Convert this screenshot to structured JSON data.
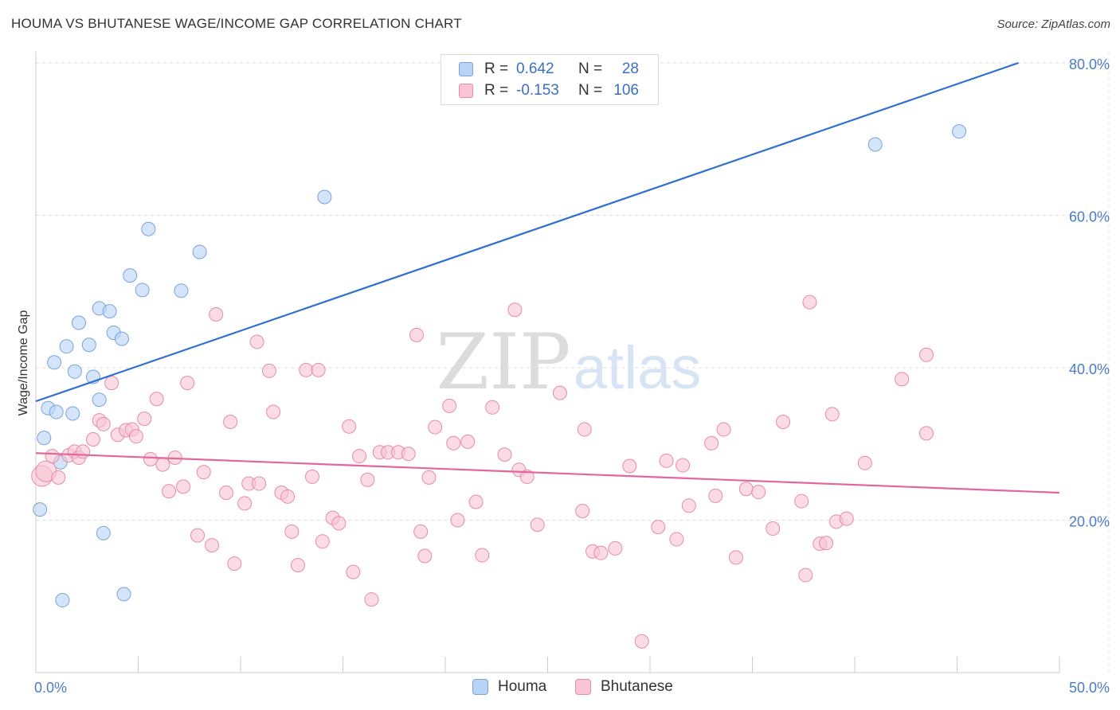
{
  "title": "HOUMA VS BHUTANESE WAGE/INCOME GAP CORRELATION CHART",
  "source": "Source: ZipAtlas.com",
  "watermark": {
    "zip": "ZIP",
    "atlas": "atlas"
  },
  "legend": [
    {
      "name": "Houma",
      "r_label": "R =",
      "r_value": "0.642",
      "n_label": "N =",
      "n_value": "28",
      "fill": "#b8d3f5",
      "stroke": "#7aa3dc"
    },
    {
      "name": "Bhutanese",
      "r_label": "R =",
      "r_value": "-0.153",
      "n_label": "N =",
      "n_value": "106",
      "fill": "#f9c4d3",
      "stroke": "#e78ba6"
    }
  ],
  "colors": {
    "houma_line": "#2f6fce",
    "bhutanese_line": "#e2679a",
    "tick_text": "#4a7cc9",
    "grid": "#dddddd"
  },
  "chart_data": {
    "type": "scatter",
    "ylabel": "Wage/Income Gap",
    "xlabel": "",
    "xlim": [
      0,
      50
    ],
    "ylim": [
      0,
      80
    ],
    "x_tick_labels": [
      {
        "value": 0,
        "label": "0.0%"
      },
      {
        "value": 50,
        "label": "50.0%"
      }
    ],
    "y_tick_labels": [
      {
        "value": 20,
        "label": "20.0%"
      },
      {
        "value": 40,
        "label": "40.0%"
      },
      {
        "value": 60,
        "label": "60.0%"
      },
      {
        "value": 80,
        "label": "80.0%"
      }
    ],
    "series": [
      {
        "name": "Houma",
        "points": [
          [
            0.2,
            21.4
          ],
          [
            0.4,
            30.8
          ],
          [
            0.6,
            34.7
          ],
          [
            0.9,
            40.7
          ],
          [
            1.0,
            34.2
          ],
          [
            1.2,
            27.6
          ],
          [
            1.5,
            42.8
          ],
          [
            1.8,
            34.0
          ],
          [
            1.9,
            39.5
          ],
          [
            2.1,
            45.9
          ],
          [
            2.6,
            43.0
          ],
          [
            2.8,
            38.8
          ],
          [
            3.1,
            35.8
          ],
          [
            3.1,
            47.8
          ],
          [
            3.3,
            18.3
          ],
          [
            3.6,
            47.4
          ],
          [
            3.8,
            44.6
          ],
          [
            4.2,
            43.8
          ],
          [
            4.3,
            10.3
          ],
          [
            4.6,
            52.1
          ],
          [
            5.2,
            50.2
          ],
          [
            5.5,
            58.2
          ],
          [
            1.3,
            9.5
          ],
          [
            7.1,
            50.1
          ],
          [
            8.0,
            55.2
          ],
          [
            14.1,
            62.4
          ],
          [
            41.0,
            69.3
          ],
          [
            45.1,
            71.0
          ]
        ],
        "trend": {
          "x": [
            0,
            48
          ],
          "y": [
            35.6,
            80.0
          ]
        }
      },
      {
        "name": "Bhutanese",
        "points": [
          [
            0.3,
            25.8
          ],
          [
            0.5,
            26.4
          ],
          [
            0.8,
            28.4
          ],
          [
            1.1,
            25.6
          ],
          [
            1.6,
            28.5
          ],
          [
            1.9,
            29.0
          ],
          [
            2.1,
            28.2
          ],
          [
            2.3,
            29.0
          ],
          [
            2.8,
            30.6
          ],
          [
            3.1,
            33.1
          ],
          [
            3.3,
            32.6
          ],
          [
            3.7,
            38.0
          ],
          [
            4.0,
            31.2
          ],
          [
            4.4,
            31.8
          ],
          [
            4.7,
            31.9
          ],
          [
            4.9,
            31.0
          ],
          [
            5.3,
            33.3
          ],
          [
            5.6,
            28.0
          ],
          [
            5.9,
            35.9
          ],
          [
            6.2,
            27.3
          ],
          [
            6.5,
            23.8
          ],
          [
            6.8,
            28.2
          ],
          [
            7.2,
            24.4
          ],
          [
            7.4,
            38.0
          ],
          [
            7.9,
            18.0
          ],
          [
            8.2,
            26.3
          ],
          [
            8.6,
            16.7
          ],
          [
            8.8,
            47.0
          ],
          [
            9.3,
            23.6
          ],
          [
            9.5,
            32.9
          ],
          [
            9.7,
            14.3
          ],
          [
            10.2,
            22.2
          ],
          [
            10.4,
            24.8
          ],
          [
            10.8,
            43.4
          ],
          [
            10.9,
            24.8
          ],
          [
            11.4,
            39.6
          ],
          [
            11.6,
            34.2
          ],
          [
            12.0,
            23.6
          ],
          [
            12.3,
            23.1
          ],
          [
            12.5,
            18.5
          ],
          [
            12.8,
            14.1
          ],
          [
            13.2,
            39.7
          ],
          [
            13.5,
            25.7
          ],
          [
            13.8,
            39.7
          ],
          [
            14.0,
            17.2
          ],
          [
            14.5,
            20.3
          ],
          [
            14.8,
            19.6
          ],
          [
            15.3,
            32.3
          ],
          [
            15.5,
            13.2
          ],
          [
            15.8,
            28.4
          ],
          [
            16.2,
            25.3
          ],
          [
            16.4,
            9.6
          ],
          [
            16.8,
            28.9
          ],
          [
            17.2,
            28.9
          ],
          [
            17.7,
            28.9
          ],
          [
            18.2,
            28.7
          ],
          [
            18.6,
            44.3
          ],
          [
            18.8,
            18.5
          ],
          [
            19.0,
            15.3
          ],
          [
            19.2,
            25.6
          ],
          [
            19.5,
            32.2
          ],
          [
            20.2,
            35.0
          ],
          [
            20.4,
            30.1
          ],
          [
            20.6,
            20.0
          ],
          [
            21.1,
            30.3
          ],
          [
            21.5,
            22.4
          ],
          [
            21.8,
            15.4
          ],
          [
            22.3,
            34.8
          ],
          [
            22.9,
            28.6
          ],
          [
            23.4,
            47.6
          ],
          [
            23.6,
            26.6
          ],
          [
            24.0,
            25.7
          ],
          [
            24.5,
            19.4
          ],
          [
            25.6,
            36.7
          ],
          [
            26.7,
            21.2
          ],
          [
            26.8,
            31.9
          ],
          [
            27.2,
            15.9
          ],
          [
            27.6,
            15.7
          ],
          [
            28.3,
            16.3
          ],
          [
            29.0,
            27.1
          ],
          [
            29.6,
            4.1
          ],
          [
            30.4,
            19.1
          ],
          [
            30.8,
            27.8
          ],
          [
            31.3,
            17.5
          ],
          [
            31.6,
            27.2
          ],
          [
            31.9,
            21.9
          ],
          [
            33.0,
            30.1
          ],
          [
            33.2,
            23.2
          ],
          [
            33.6,
            31.9
          ],
          [
            34.2,
            15.1
          ],
          [
            34.7,
            24.1
          ],
          [
            35.3,
            23.7
          ],
          [
            36.0,
            18.9
          ],
          [
            36.5,
            32.9
          ],
          [
            37.4,
            22.5
          ],
          [
            37.6,
            12.8
          ],
          [
            37.8,
            48.6
          ],
          [
            38.3,
            16.9
          ],
          [
            38.6,
            17.0
          ],
          [
            38.9,
            33.9
          ],
          [
            39.1,
            19.8
          ],
          [
            39.6,
            20.2
          ],
          [
            40.5,
            27.5
          ],
          [
            42.3,
            38.5
          ],
          [
            43.5,
            41.7
          ],
          [
            43.5,
            31.4
          ]
        ],
        "trend": {
          "x": [
            0,
            50
          ],
          "y": [
            28.8,
            23.6
          ]
        }
      }
    ],
    "grid": true,
    "legend_position": "top-center"
  }
}
